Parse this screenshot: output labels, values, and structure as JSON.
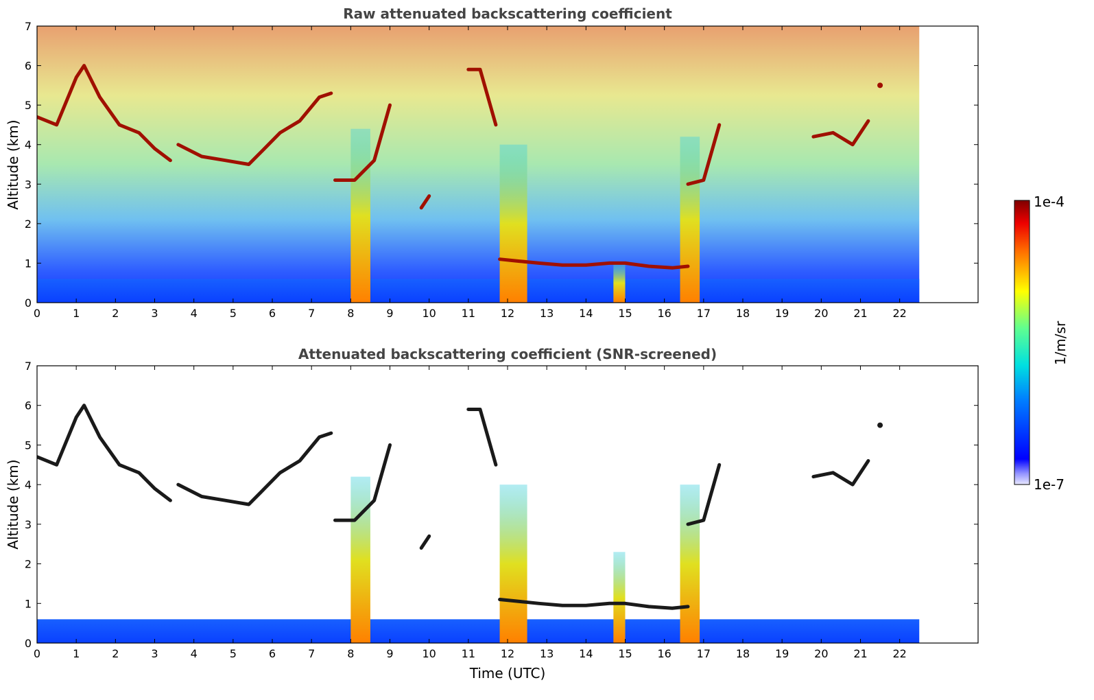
{
  "figure": {
    "colorbar": {
      "label": "1/m/sr",
      "max_label": "1e-4",
      "min_label": "1e-7",
      "colormap": "jet"
    }
  },
  "chart_data": [
    {
      "type": "heatmap",
      "title": "Raw attenuated backscattering coefficient",
      "xlabel": "",
      "ylabel": "Altitude (km)",
      "xlim": [
        0,
        24
      ],
      "ylim": [
        0,
        7
      ],
      "data_extent_x": [
        0,
        22.5
      ],
      "x_ticks": [
        "0",
        "1",
        "2",
        "3",
        "4",
        "5",
        "6",
        "7",
        "8",
        "9",
        "10",
        "11",
        "12",
        "13",
        "14",
        "15",
        "16",
        "17",
        "18",
        "19",
        "20",
        "21",
        "22"
      ],
      "y_ticks": [
        "0",
        "1",
        "2",
        "3",
        "4",
        "5",
        "6",
        "7"
      ],
      "screened": false,
      "boundary_layer_top_km": 0.6,
      "precipitation_columns": [
        {
          "x_start": 8.0,
          "x_end": 8.5,
          "top_km": 4.4
        },
        {
          "x_start": 11.8,
          "x_end": 12.5,
          "top_km": 4.0
        },
        {
          "x_start": 14.7,
          "x_end": 15.0,
          "top_km": 1.0
        },
        {
          "x_start": 16.4,
          "x_end": 16.9,
          "top_km": 4.2
        }
      ],
      "cloud_layers": [
        {
          "x": [
            0.0,
            0.5,
            1.0,
            1.2,
            1.6,
            2.1,
            2.6,
            3.0,
            3.4
          ],
          "y": [
            4.7,
            4.5,
            5.7,
            6.0,
            5.2,
            4.5,
            4.3,
            3.9,
            3.6
          ]
        },
        {
          "x": [
            3.6,
            4.2,
            4.8,
            5.4,
            5.8,
            6.2,
            6.7,
            7.2,
            7.5
          ],
          "y": [
            4.0,
            3.7,
            3.6,
            3.5,
            3.9,
            4.3,
            4.6,
            5.2,
            5.3
          ]
        },
        {
          "x": [
            7.6,
            8.1,
            8.6,
            9.0
          ],
          "y": [
            3.1,
            3.1,
            3.6,
            5.0
          ]
        },
        {
          "x": [
            9.8,
            10.0
          ],
          "y": [
            2.4,
            2.7
          ]
        },
        {
          "x": [
            11.0,
            11.3,
            11.7
          ],
          "y": [
            5.9,
            5.9,
            4.5
          ]
        },
        {
          "x": [
            11.8,
            12.3,
            12.8,
            13.4,
            14.0,
            14.6,
            15.0,
            15.6,
            16.2,
            16.6
          ],
          "y": [
            1.1,
            1.05,
            1.0,
            0.95,
            0.95,
            1.0,
            1.0,
            0.92,
            0.88,
            0.92
          ]
        },
        {
          "x": [
            16.6,
            17.0,
            17.4
          ],
          "y": [
            3.0,
            3.1,
            4.5
          ]
        },
        {
          "x": [
            19.8,
            20.3,
            20.8,
            21.2
          ],
          "y": [
            4.2,
            4.3,
            4.0,
            4.6
          ]
        },
        {
          "x": [
            21.5
          ],
          "y": [
            5.5
          ]
        }
      ]
    },
    {
      "type": "heatmap",
      "title": "Attenuated backscattering coefficient (SNR-screened)",
      "xlabel": "Time (UTC)",
      "ylabel": "Altitude (km)",
      "xlim": [
        0,
        24
      ],
      "ylim": [
        0,
        7
      ],
      "data_extent_x": [
        0,
        22.5
      ],
      "x_ticks": [
        "0",
        "1",
        "2",
        "3",
        "4",
        "5",
        "6",
        "7",
        "8",
        "9",
        "10",
        "11",
        "12",
        "13",
        "14",
        "15",
        "16",
        "17",
        "18",
        "19",
        "20",
        "21",
        "22"
      ],
      "y_ticks": [
        "0",
        "1",
        "2",
        "3",
        "4",
        "5",
        "6",
        "7"
      ],
      "screened": true,
      "boundary_layer_top_km": 0.6,
      "precipitation_columns": [
        {
          "x_start": 8.0,
          "x_end": 8.5,
          "top_km": 4.2
        },
        {
          "x_start": 11.8,
          "x_end": 12.5,
          "top_km": 4.0
        },
        {
          "x_start": 14.7,
          "x_end": 15.0,
          "top_km": 2.3
        },
        {
          "x_start": 16.4,
          "x_end": 16.9,
          "top_km": 4.0
        }
      ],
      "cloud_layers": [
        {
          "x": [
            0.0,
            0.5,
            1.0,
            1.2,
            1.6,
            2.1,
            2.6,
            3.0,
            3.4
          ],
          "y": [
            4.7,
            4.5,
            5.7,
            6.0,
            5.2,
            4.5,
            4.3,
            3.9,
            3.6
          ]
        },
        {
          "x": [
            3.6,
            4.2,
            4.8,
            5.4,
            5.8,
            6.2,
            6.7,
            7.2,
            7.5
          ],
          "y": [
            4.0,
            3.7,
            3.6,
            3.5,
            3.9,
            4.3,
            4.6,
            5.2,
            5.3
          ]
        },
        {
          "x": [
            7.6,
            8.1,
            8.6,
            9.0
          ],
          "y": [
            3.1,
            3.1,
            3.6,
            5.0
          ]
        },
        {
          "x": [
            9.8,
            10.0
          ],
          "y": [
            2.4,
            2.7
          ]
        },
        {
          "x": [
            11.0,
            11.3,
            11.7
          ],
          "y": [
            5.9,
            5.9,
            4.5
          ]
        },
        {
          "x": [
            11.8,
            12.3,
            12.8,
            13.4,
            14.0,
            14.6,
            15.0,
            15.6,
            16.2,
            16.6
          ],
          "y": [
            1.1,
            1.05,
            1.0,
            0.95,
            0.95,
            1.0,
            1.0,
            0.92,
            0.88,
            0.92
          ]
        },
        {
          "x": [
            16.6,
            17.0,
            17.4
          ],
          "y": [
            3.0,
            3.1,
            4.5
          ]
        },
        {
          "x": [
            19.8,
            20.3,
            20.8,
            21.2
          ],
          "y": [
            4.2,
            4.3,
            4.0,
            4.6
          ]
        },
        {
          "x": [
            21.5
          ],
          "y": [
            5.5
          ]
        }
      ]
    }
  ]
}
